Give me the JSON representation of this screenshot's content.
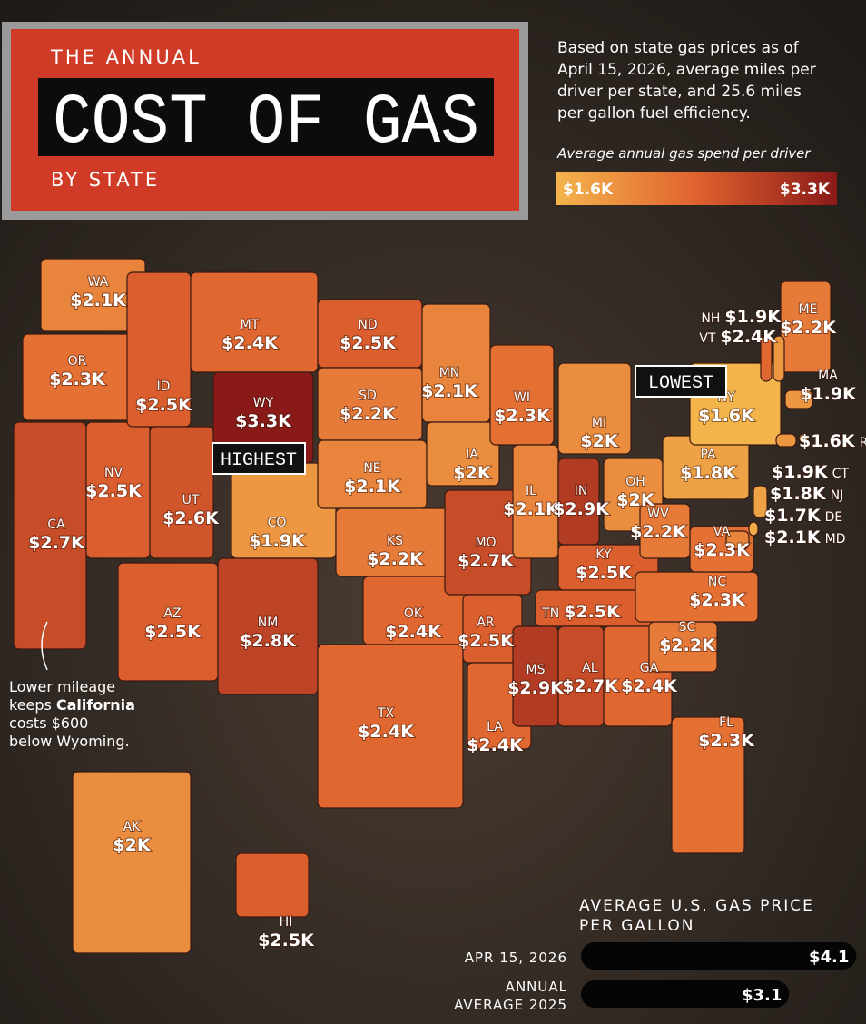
{
  "header": {
    "title_top": "THE ANNUAL",
    "title_main": "COST OF GAS",
    "title_bottom": "BY STATE"
  },
  "description": [
    "Based on state gas prices as of",
    "April 15, 2026, average miles per",
    "driver per state, and 25.6 miles",
    "per gallon fuel efficiency."
  ],
  "legend": {
    "title": "Average annual gas spend per driver",
    "min": 1600,
    "min_label": "$1.6K",
    "max": 3300,
    "max_label": "$3.3K",
    "colors": [
      "#f4b44c",
      "#e0622f",
      "#8a1a18"
    ]
  },
  "states": [
    {
      "code": "WA",
      "value": 2100,
      "value_label": "$2.1K"
    },
    {
      "code": "OR",
      "value": 2300,
      "value_label": "$2.3K"
    },
    {
      "code": "CA",
      "value": 2700,
      "value_label": "$2.7K"
    },
    {
      "code": "NV",
      "value": 2500,
      "value_label": "$2.5K"
    },
    {
      "code": "ID",
      "value": 2500,
      "value_label": "$2.5K"
    },
    {
      "code": "MT",
      "value": 2400,
      "value_label": "$2.4K"
    },
    {
      "code": "WY",
      "value": 3300,
      "value_label": "$3.3K"
    },
    {
      "code": "UT",
      "value": 2600,
      "value_label": "$2.6K"
    },
    {
      "code": "AZ",
      "value": 2500,
      "value_label": "$2.5K"
    },
    {
      "code": "CO",
      "value": 1900,
      "value_label": "$1.9K"
    },
    {
      "code": "NM",
      "value": 2800,
      "value_label": "$2.8K"
    },
    {
      "code": "ND",
      "value": 2500,
      "value_label": "$2.5K"
    },
    {
      "code": "SD",
      "value": 2200,
      "value_label": "$2.2K"
    },
    {
      "code": "NE",
      "value": 2100,
      "value_label": "$2.1K"
    },
    {
      "code": "KS",
      "value": 2200,
      "value_label": "$2.2K"
    },
    {
      "code": "OK",
      "value": 2400,
      "value_label": "$2.4K"
    },
    {
      "code": "TX",
      "value": 2400,
      "value_label": "$2.4K"
    },
    {
      "code": "MN",
      "value": 2100,
      "value_label": "$2.1K"
    },
    {
      "code": "IA",
      "value": 2000,
      "value_label": "$2K"
    },
    {
      "code": "MO",
      "value": 2700,
      "value_label": "$2.7K"
    },
    {
      "code": "AR",
      "value": 2500,
      "value_label": "$2.5K"
    },
    {
      "code": "LA",
      "value": 2400,
      "value_label": "$2.4K"
    },
    {
      "code": "WI",
      "value": 2300,
      "value_label": "$2.3K"
    },
    {
      "code": "IL",
      "value": 2100,
      "value_label": "$2.1K"
    },
    {
      "code": "IN",
      "value": 2900,
      "value_label": "$2.9K"
    },
    {
      "code": "MI",
      "value": 2000,
      "value_label": "$2K"
    },
    {
      "code": "OH",
      "value": 2000,
      "value_label": "$2K"
    },
    {
      "code": "KY",
      "value": 2500,
      "value_label": "$2.5K"
    },
    {
      "code": "TN",
      "value": 2500,
      "value_label": "$2.5K"
    },
    {
      "code": "MS",
      "value": 2900,
      "value_label": "$2.9K"
    },
    {
      "code": "AL",
      "value": 2700,
      "value_label": "$2.7K"
    },
    {
      "code": "GA",
      "value": 2400,
      "value_label": "$2.4K"
    },
    {
      "code": "FL",
      "value": 2300,
      "value_label": "$2.3K"
    },
    {
      "code": "SC",
      "value": 2200,
      "value_label": "$2.2K"
    },
    {
      "code": "NC",
      "value": 2300,
      "value_label": "$2.3K"
    },
    {
      "code": "VA",
      "value": 2300,
      "value_label": "$2.3K"
    },
    {
      "code": "WV",
      "value": 2200,
      "value_label": "$2.2K"
    },
    {
      "code": "PA",
      "value": 1800,
      "value_label": "$1.8K"
    },
    {
      "code": "NY",
      "value": 1600,
      "value_label": "$1.6K"
    },
    {
      "code": "ME",
      "value": 2200,
      "value_label": "$2.2K"
    },
    {
      "code": "NH",
      "value": 1900,
      "value_label": "$1.9K"
    },
    {
      "code": "VT",
      "value": 2400,
      "value_label": "$2.4K"
    },
    {
      "code": "MA",
      "value": 1900,
      "value_label": "$1.9K"
    },
    {
      "code": "RI",
      "value": 1600,
      "value_label": "$1.6K"
    },
    {
      "code": "CT",
      "value": 1900,
      "value_label": "$1.9K"
    },
    {
      "code": "NJ",
      "value": 1800,
      "value_label": "$1.8K"
    },
    {
      "code": "DE",
      "value": 1700,
      "value_label": "$1.7K"
    },
    {
      "code": "MD",
      "value": 2100,
      "value_label": "$2.1K"
    },
    {
      "code": "AK",
      "value": 2000,
      "value_label": "$2K"
    },
    {
      "code": "HI",
      "value": 2500,
      "value_label": "$2.5K"
    }
  ],
  "callouts": {
    "highest": "HIGHEST",
    "lowest": "LOWEST"
  },
  "annotation": {
    "line1": "Lower mileage",
    "line2a": "keeps",
    "line2b": "California",
    "line3": "costs $600",
    "line4": "below Wyoming."
  },
  "gas_price": {
    "title": [
      "AVERAGE U.S. GAS PRICE",
      "PER GALLON"
    ],
    "rows": [
      {
        "label": [
          "APR 15, 2026"
        ],
        "value": 4.1,
        "value_label": "$4.1"
      },
      {
        "label": [
          "ANNUAL",
          "AVERAGE 2025"
        ],
        "value": 3.1,
        "value_label": "$3.1"
      }
    ]
  }
}
